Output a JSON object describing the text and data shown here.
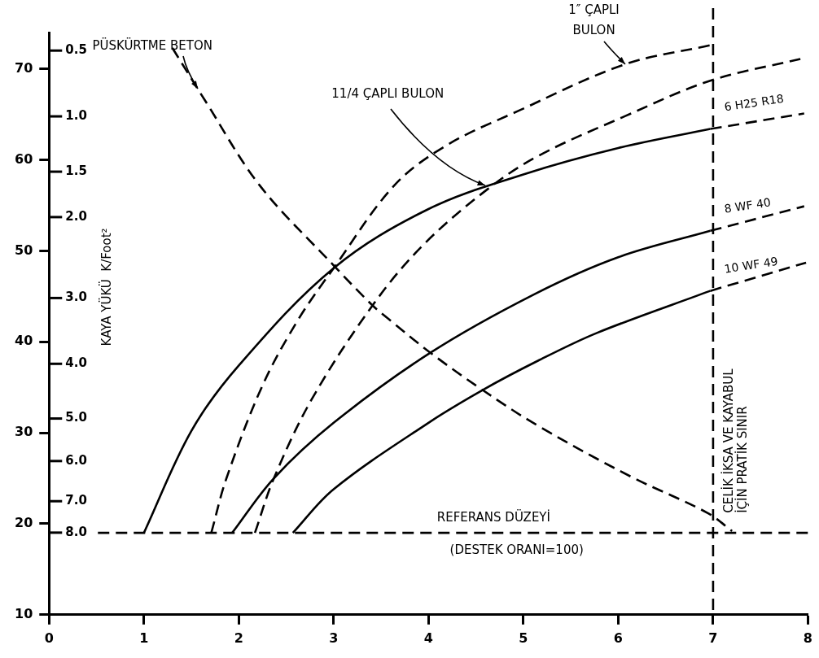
{
  "chart_data": {
    "type": "line",
    "xlim": [
      0,
      8
    ],
    "xticks": [
      0,
      1,
      2,
      3,
      4,
      5,
      6,
      7,
      8
    ],
    "ylim": [
      10,
      74
    ],
    "yticks": [
      10,
      20,
      30,
      40,
      50,
      60,
      70
    ],
    "y2label": "KAYA YÜKÜ  K/Foot²",
    "series": [
      {
        "name": "6 H25 R18",
        "color": "#000000",
        "line_style": "solid",
        "x": [
          1.0,
          1.5,
          2,
          3,
          4,
          5,
          6,
          6.97
        ],
        "values": [
          19,
          30.2,
          37.4,
          48.1,
          54.6,
          58.4,
          61.3,
          63.4
        ]
      },
      {
        "color": "#000000",
        "line_style": "dashed",
        "x": [
          6.97,
          7.96
        ],
        "values": [
          63.4,
          65.1
        ]
      },
      {
        "name": "8 WF 40",
        "color": "#000000",
        "line_style": "solid",
        "x": [
          1.93,
          2.37,
          3,
          4.02,
          5.11,
          6,
          6.97
        ],
        "values": [
          19,
          25,
          31.1,
          38.8,
          45.2,
          49.3,
          52.2
        ]
      },
      {
        "color": "#000000",
        "line_style": "dashed",
        "x": [
          6.97,
          7.96
        ],
        "values": [
          52.2,
          54.9
        ]
      },
      {
        "name": "10 WF 49",
        "color": "#000000",
        "line_style": "solid",
        "x": [
          2.57,
          3,
          4,
          4.57,
          5.15,
          5.78,
          6.97
        ],
        "values": [
          19,
          23.8,
          31.1,
          34.7,
          37.9,
          41,
          45.6
        ]
      },
      {
        "color": "#000000",
        "line_style": "dashed",
        "x": [
          6.97,
          7.98
        ],
        "values": [
          45.6,
          48.7
        ]
      },
      {
        "color": "#000000",
        "line_style": "dashed",
        "x": [
          1.71,
          1.87,
          2.25,
          2.63,
          3.0,
          3.64,
          4.19,
          4.95,
          6.07,
          6.97
        ],
        "values": [
          19,
          25,
          35.2,
          42.5,
          48.1,
          57.2,
          61.6,
          65.4,
          70.5,
          72.6
        ]
      },
      {
        "color": "#000000",
        "line_style": "dashed",
        "x": [
          2.17,
          2.37,
          2.77,
          3.41,
          3.93,
          4.6,
          5.15,
          6.07,
          6.97,
          7.92
        ],
        "values": [
          19,
          25,
          33.7,
          44,
          50.5,
          56.6,
          60.4,
          64.8,
          68.7,
          71.1
        ]
      },
      {
        "color": "#000000",
        "line_style": "dashed",
        "x": [
          1.3,
          1.64,
          2.22,
          3.0,
          3.41,
          3.58,
          4.02,
          4.57,
          5.15,
          6.13,
          6.94,
          7.2
        ],
        "values": [
          72.3,
          66.6,
          57.2,
          48.4,
          44,
          42.5,
          38.8,
          34.7,
          30.8,
          25.2,
          21.2,
          19.2
        ]
      }
    ],
    "ref_lines": [
      {
        "axis": "y",
        "value": 19,
        "label": "REFERANS DÜZEYİ",
        "color": "#000000",
        "line_style": "dashed"
      },
      {
        "axis": "x",
        "value": 7,
        "label": "CELİK İKSA VE KAYABUL\nİÇİN PRATİK SINIR",
        "color": "#000000",
        "line_style": "dashed"
      }
    ],
    "annotations": [
      {
        "text": "PÜSKÜRTME BETON",
        "x": 1.57,
        "y": 67.8
      },
      {
        "text": "1″ ÇAPLI\nBULON",
        "x": 6.07,
        "y": 70.5
      },
      {
        "text": "11/4 ÇAPLI BULON",
        "x": 4.6,
        "y": 57.2
      },
      "0.5",
      "1.0",
      "1.5",
      "2.0",
      "3.0",
      "4.0",
      "5.0",
      "6.0",
      "7.0",
      "8.0",
      {
        "text": "(DESTEK ORANI=100)",
        "x": 4.93,
        "y": 19
      }
    ]
  }
}
